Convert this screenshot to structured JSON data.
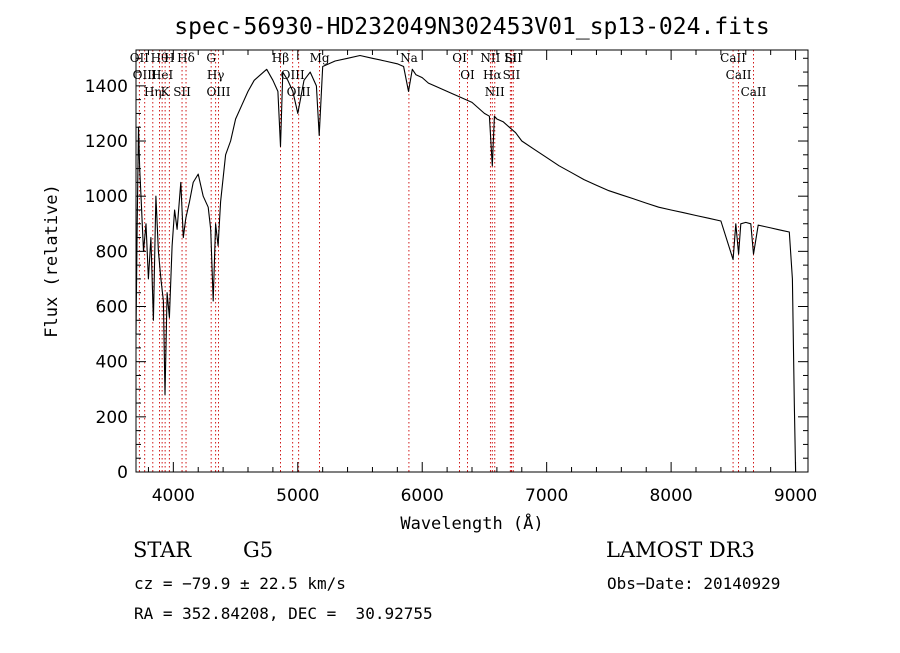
{
  "chart_data": {
    "type": "line",
    "title": "spec-56930-HD232049N302453V01_sp13-024.fits",
    "xlabel": "Wavelength (Å)",
    "ylabel": "Flux (relative)",
    "xlim": [
      3700,
      9100
    ],
    "ylim": [
      0,
      1530
    ],
    "x_ticks": [
      4000,
      5000,
      6000,
      7000,
      8000,
      9000
    ],
    "y_ticks": [
      0,
      200,
      400,
      600,
      800,
      1000,
      1200,
      1400
    ],
    "grid": false,
    "series": [
      {
        "color": "#000000",
        "x": [
          3700,
          3710,
          3720,
          3730,
          3740,
          3760,
          3780,
          3800,
          3820,
          3840,
          3860,
          3880,
          3900,
          3920,
          3933,
          3950,
          3968,
          3990,
          4010,
          4030,
          4060,
          4080,
          4100,
          4130,
          4160,
          4200,
          4240,
          4280,
          4300,
          4320,
          4340,
          4360,
          4380,
          4420,
          4460,
          4500,
          4550,
          4600,
          4650,
          4700,
          4750,
          4800,
          4840,
          4861,
          4880,
          4920,
          4960,
          5000,
          5050,
          5100,
          5150,
          5172,
          5200,
          5250,
          5300,
          5400,
          5500,
          5600,
          5700,
          5800,
          5850,
          5890,
          5920,
          5950,
          6000,
          6050,
          6100,
          6150,
          6200,
          6250,
          6300,
          6350,
          6400,
          6450,
          6500,
          6540,
          6563,
          6580,
          6600,
          6650,
          6700,
          6750,
          6800,
          6900,
          7000,
          7100,
          7200,
          7300,
          7400,
          7500,
          7600,
          7700,
          7800,
          7900,
          8000,
          8100,
          8200,
          8300,
          8400,
          8498,
          8520,
          8542,
          8560,
          8600,
          8640,
          8662,
          8700,
          8750,
          8800,
          8850,
          8900,
          8950,
          8975,
          8990,
          9000
        ],
        "y": [
          500,
          900,
          1250,
          1100,
          1000,
          800,
          900,
          700,
          850,
          550,
          1000,
          800,
          700,
          620,
          280,
          650,
          560,
          820,
          950,
          880,
          1050,
          850,
          920,
          980,
          1050,
          1080,
          1000,
          960,
          880,
          620,
          900,
          820,
          980,
          1150,
          1200,
          1280,
          1330,
          1380,
          1420,
          1440,
          1460,
          1420,
          1380,
          1180,
          1450,
          1420,
          1380,
          1300,
          1420,
          1450,
          1400,
          1220,
          1470,
          1480,
          1490,
          1500,
          1510,
          1500,
          1490,
          1480,
          1470,
          1380,
          1460,
          1440,
          1430,
          1410,
          1400,
          1390,
          1380,
          1370,
          1360,
          1350,
          1340,
          1320,
          1300,
          1290,
          1110,
          1290,
          1280,
          1270,
          1250,
          1230,
          1200,
          1170,
          1140,
          1110,
          1085,
          1060,
          1040,
          1020,
          1005,
          990,
          975,
          960,
          950,
          940,
          930,
          920,
          910,
          770,
          900,
          790,
          900,
          905,
          900,
          790,
          895,
          890,
          885,
          880,
          875,
          870,
          700,
          250,
          0
        ]
      }
    ],
    "lines": [
      {
        "wl": 3727,
        "label": "OII"
      },
      {
        "wl": 3770,
        "label": "OIII"
      },
      {
        "wl": 3835,
        "label": "Hη"
      },
      {
        "wl": 3889,
        "label": "Hθ"
      },
      {
        "wl": 3910,
        "label": "HeI"
      },
      {
        "wl": 3934,
        "label": "K"
      },
      {
        "wl": 3968,
        "label": "H"
      },
      {
        "wl": 4070,
        "label": "SII"
      },
      {
        "wl": 4102,
        "label": "Hδ"
      },
      {
        "wl": 4304,
        "label": "G"
      },
      {
        "wl": 4340,
        "label": "Hγ"
      },
      {
        "wl": 4363,
        "label": "OIII"
      },
      {
        "wl": 4861,
        "label": "Hβ"
      },
      {
        "wl": 4959,
        "label": "OIII"
      },
      {
        "wl": 5007,
        "label": "OIII"
      },
      {
        "wl": 5175,
        "label": "Mg"
      },
      {
        "wl": 5893,
        "label": "Na"
      },
      {
        "wl": 6300,
        "label": "OI"
      },
      {
        "wl": 6364,
        "label": "OI"
      },
      {
        "wl": 6548,
        "label": "NII"
      },
      {
        "wl": 6563,
        "label": "Hα"
      },
      {
        "wl": 6583,
        "label": "NII"
      },
      {
        "wl": 6708,
        "label": "Li"
      },
      {
        "wl": 6717,
        "label": "SII"
      },
      {
        "wl": 6731,
        "label": "SII"
      },
      {
        "wl": 8498,
        "label": "CaII"
      },
      {
        "wl": 8542,
        "label": "CaII"
      },
      {
        "wl": 8662,
        "label": "CaII"
      }
    ]
  },
  "info": {
    "class_label": "STAR",
    "subclass_label": "G5",
    "survey_label": "LAMOST DR3",
    "cz_line": "cz = −79.9 ± 22.5 km/s",
    "obs_date_line": "Obs−Date: 20140929",
    "radec_line": "RA = 352.84208, DEC =  30.92755"
  }
}
